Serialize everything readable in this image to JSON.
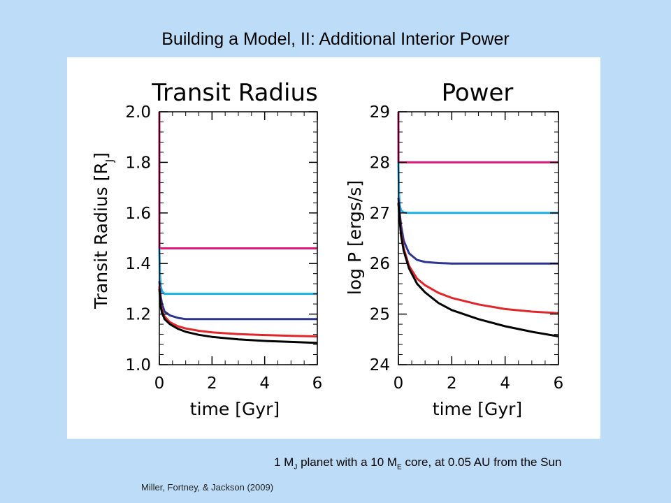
{
  "slide": {
    "title": "Building a Model, II: Additional Interior Power",
    "citation": "Miller, Fortney, & Jackson (2009)",
    "caption": {
      "p1": "1 M",
      "sub1": "J",
      "p2": " planet with a 10 M",
      "sub2": "E",
      "p3": " core, at 0.05 AU from the Sun"
    }
  },
  "colors": {
    "background": "#bcdcf7",
    "magenta": "#e0187a",
    "cyan": "#1ab0e8",
    "navy": "#2b3590",
    "red": "#e0262a",
    "black": "#000000"
  },
  "chart_data": [
    {
      "type": "line",
      "title": "Transit Radius",
      "xlabel": "time [Gyr]",
      "ylabel": "Transit Radius [R",
      "ylabel_sub": "J",
      "ylabel_close": "]",
      "xlim": [
        0,
        6
      ],
      "ylim": [
        1.0,
        2.0
      ],
      "xticks": [
        "0",
        "2",
        "4",
        "6"
      ],
      "yticks": [
        "1.0",
        "1.2",
        "1.4",
        "1.6",
        "1.8",
        "2.0"
      ],
      "grid": false,
      "legend": "none",
      "series": [
        {
          "color": "#e0187a",
          "x": [
            0,
            0.001,
            0.002,
            6
          ],
          "y": [
            2.0,
            2.0,
            1.46,
            1.46
          ]
        },
        {
          "color": "#1ab0e8",
          "x": [
            0,
            0.02,
            0.05,
            0.1,
            0.2,
            0.4,
            6
          ],
          "y": [
            1.46,
            1.36,
            1.31,
            1.29,
            1.28,
            1.28,
            1.28
          ]
        },
        {
          "color": "#2b3590",
          "x": [
            0,
            0.05,
            0.1,
            0.2,
            0.4,
            0.7,
            1.0,
            1.5,
            2.0,
            3.0,
            6
          ],
          "y": [
            1.33,
            1.27,
            1.24,
            1.21,
            1.195,
            1.185,
            1.18,
            1.18,
            1.18,
            1.18,
            1.18
          ]
        },
        {
          "color": "#e0262a",
          "x": [
            0,
            0.05,
            0.1,
            0.2,
            0.4,
            0.7,
            1.0,
            1.5,
            2.0,
            3.0,
            4.0,
            5.0,
            6.0
          ],
          "y": [
            1.31,
            1.24,
            1.215,
            1.19,
            1.168,
            1.152,
            1.143,
            1.134,
            1.128,
            1.121,
            1.117,
            1.114,
            1.112
          ]
        },
        {
          "color": "#000000",
          "x": [
            0,
            0.05,
            0.1,
            0.2,
            0.4,
            0.7,
            1.0,
            1.5,
            2.0,
            3.0,
            4.0,
            5.0,
            6.0
          ],
          "y": [
            1.3,
            1.23,
            1.205,
            1.18,
            1.16,
            1.142,
            1.13,
            1.118,
            1.11,
            1.1,
            1.094,
            1.09,
            1.086
          ]
        }
      ]
    },
    {
      "type": "line",
      "title": "Power",
      "xlabel": "time [Gyr]",
      "ylabel": "log P [ergs/s]",
      "xlim": [
        0,
        6
      ],
      "ylim": [
        24,
        29
      ],
      "xticks": [
        "0",
        "2",
        "4",
        "6"
      ],
      "yticks": [
        "24",
        "25",
        "26",
        "27",
        "28",
        "29"
      ],
      "grid": false,
      "legend": "none",
      "series": [
        {
          "color": "#e0187a",
          "x": [
            0,
            0.001,
            0.002,
            6
          ],
          "y": [
            29.0,
            29.0,
            28.0,
            28.0
          ]
        },
        {
          "color": "#1ab0e8",
          "x": [
            0,
            0.02,
            0.05,
            0.1,
            0.2,
            0.4,
            6
          ],
          "y": [
            28.0,
            27.4,
            27.15,
            27.05,
            27.01,
            27.0,
            27.0
          ]
        },
        {
          "color": "#2b3590",
          "x": [
            0,
            0.05,
            0.1,
            0.2,
            0.4,
            0.7,
            1.0,
            1.5,
            2.0,
            3.0,
            6
          ],
          "y": [
            27.3,
            27.0,
            26.75,
            26.45,
            26.2,
            26.07,
            26.03,
            26.01,
            26.0,
            26.0,
            26.0
          ]
        },
        {
          "color": "#e0262a",
          "x": [
            0,
            0.05,
            0.1,
            0.2,
            0.4,
            0.7,
            1.0,
            1.5,
            2.0,
            3.0,
            4.0,
            5.0,
            6.0
          ],
          "y": [
            27.2,
            26.9,
            26.6,
            26.3,
            25.95,
            25.7,
            25.57,
            25.42,
            25.32,
            25.19,
            25.1,
            25.05,
            25.02
          ]
        },
        {
          "color": "#000000",
          "x": [
            0,
            0.05,
            0.1,
            0.2,
            0.4,
            0.7,
            1.0,
            1.5,
            2.0,
            3.0,
            4.0,
            5.0,
            6.0
          ],
          "y": [
            27.2,
            26.85,
            26.55,
            26.25,
            25.9,
            25.6,
            25.43,
            25.22,
            25.08,
            24.9,
            24.76,
            24.65,
            24.56
          ]
        }
      ]
    }
  ]
}
